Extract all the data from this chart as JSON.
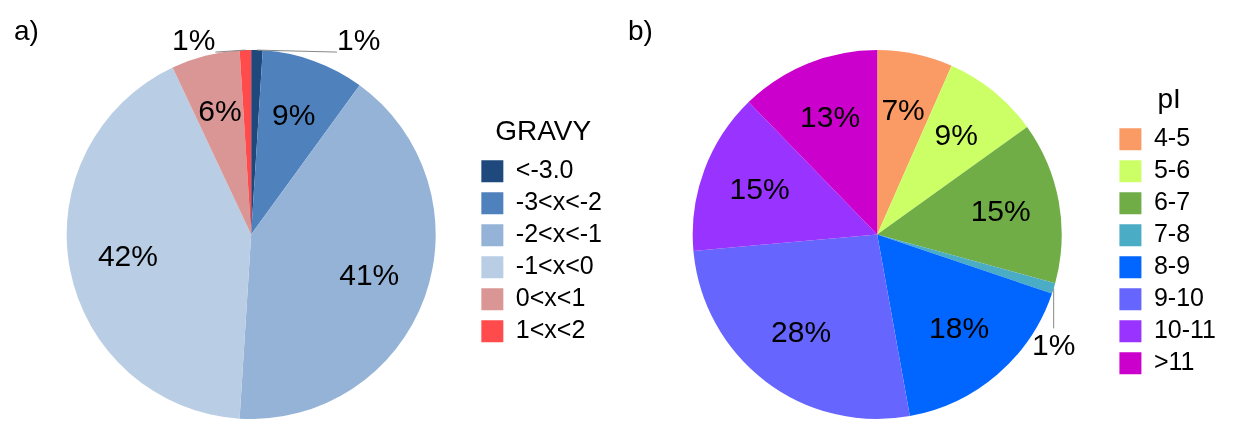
{
  "chart_data": [
    {
      "type": "pie",
      "title": "a)",
      "legend_title": "GRAVY",
      "legend": "right",
      "categories": [
        "<-3.0",
        "-3<x<-2",
        "-2<x<-1",
        "-1<x<0",
        "0<x<1",
        "1<x<2"
      ],
      "values": [
        1,
        9,
        41,
        42,
        6,
        1
      ],
      "colors": [
        "#1f497d",
        "#4f81bd",
        "#95b3d7",
        "#b9cde5",
        "#d99694",
        "#ff4b4b"
      ],
      "value_labels": [
        "1%",
        "9%",
        "41%",
        "42%",
        "6%",
        "1%"
      ]
    },
    {
      "type": "pie",
      "title": "b)",
      "legend_title": "pI",
      "legend": "right",
      "categories": [
        "4-5",
        "5-6",
        "6-7",
        "7-8",
        "8-9",
        "9-10",
        "10-11",
        ">11"
      ],
      "values": [
        7,
        9,
        15,
        1,
        18,
        28,
        15,
        13
      ],
      "colors": [
        "#fa9a64",
        "#ccff66",
        "#70ad47",
        "#4bacc6",
        "#0066ff",
        "#6666ff",
        "#9933ff",
        "#cc00cc"
      ],
      "value_labels": [
        "7%",
        "9%",
        "15%",
        "1%",
        "18%",
        "28%",
        "15%",
        "13%"
      ]
    }
  ]
}
